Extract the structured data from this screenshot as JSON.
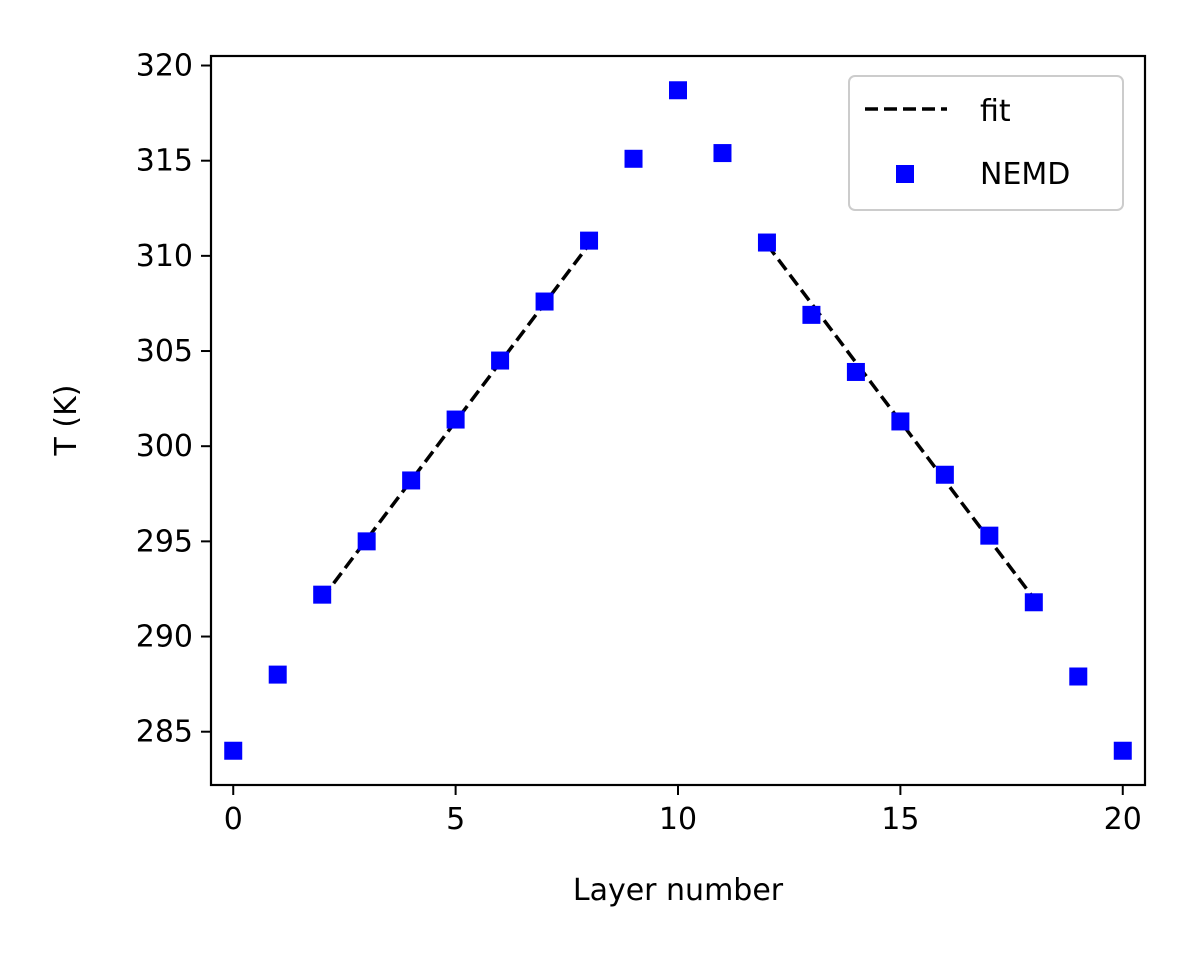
{
  "chart_data": {
    "type": "scatter",
    "xlabel": "Layer number",
    "ylabel": "T (K)",
    "xlim": [
      -0.5,
      20.5
    ],
    "ylim": [
      282.2,
      320.5
    ],
    "xticks": [
      0,
      5,
      10,
      15,
      20
    ],
    "yticks": [
      285,
      290,
      295,
      300,
      305,
      310,
      315,
      320
    ],
    "grid": false,
    "legend_position": "top-right",
    "series": [
      {
        "name": "fit",
        "kind": "line",
        "style": "dashed",
        "color": "#000000",
        "segments": [
          {
            "x": [
              2,
              8
            ],
            "y": [
              292.0,
              310.6
            ]
          },
          {
            "x": [
              12,
              18
            ],
            "y": [
              310.6,
              292.0
            ]
          }
        ]
      },
      {
        "name": "NEMD",
        "kind": "scatter",
        "marker": "square",
        "color": "#0000ff",
        "x": [
          0,
          1,
          2,
          3,
          4,
          5,
          6,
          7,
          8,
          9,
          10,
          11,
          12,
          13,
          14,
          15,
          16,
          17,
          18,
          19,
          20
        ],
        "y": [
          284.0,
          288.0,
          292.2,
          295.0,
          298.2,
          301.4,
          304.5,
          307.6,
          310.8,
          315.1,
          318.7,
          315.4,
          310.7,
          306.9,
          303.9,
          301.3,
          298.5,
          295.3,
          291.8,
          287.9,
          284.0
        ]
      }
    ]
  }
}
